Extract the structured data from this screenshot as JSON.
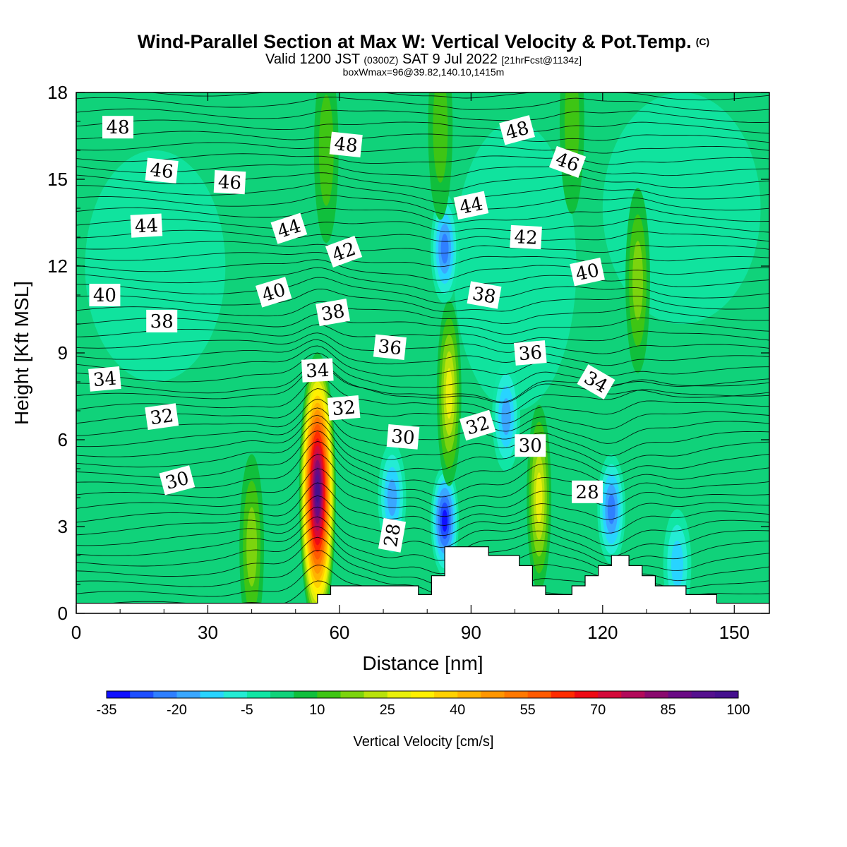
{
  "title": {
    "main": "Wind-Parallel Section at Max W: Vertical Velocity & Pot.Temp.",
    "main_suffix": "(C)",
    "valid_prefix": "Valid 1200 JST",
    "valid_utc": "(0300Z)",
    "valid_date": "SAT 9 Jul 2022",
    "forecast": "[21hrFcst@1134z]",
    "box_info": "boxWmax=96@39.82,140.10,1415m"
  },
  "chart_data": {
    "type": "heatmap",
    "xlabel": "Distance [nm]",
    "ylabel": "Height [Kft MSL]",
    "xlim": [
      0,
      158
    ],
    "ylim": [
      0,
      18
    ],
    "x_ticks": [
      0,
      30,
      60,
      90,
      120,
      150
    ],
    "y_ticks": [
      0,
      3,
      6,
      9,
      12,
      15,
      18
    ],
    "colorbar": {
      "title": "Vertical Velocity [cm/s]",
      "levels": [
        -35,
        -30,
        -25,
        -20,
        -15,
        -10,
        -5,
        0,
        5,
        10,
        15,
        20,
        25,
        30,
        35,
        40,
        45,
        50,
        55,
        60,
        65,
        70,
        75,
        80,
        85,
        90,
        95,
        100
      ],
      "tick_labels": [
        "-35",
        "-20",
        "-5",
        "10",
        "25",
        "40",
        "55",
        "70",
        "85",
        "100"
      ],
      "colors": [
        "#1010ff",
        "#1f4fff",
        "#2f7fff",
        "#3aa7ff",
        "#28d4ff",
        "#24ecd4",
        "#10e6a4",
        "#10d27a",
        "#10bf3c",
        "#3ec514",
        "#7cd40e",
        "#b8e20b",
        "#e9f00a",
        "#fff000",
        "#ffd100",
        "#ffb300",
        "#ff9600",
        "#ff7800",
        "#ff5a00",
        "#ff2c00",
        "#ee0a14",
        "#d40a3a",
        "#b20a5a",
        "#8a0a6e",
        "#6a0a84",
        "#55108e",
        "#45108e"
      ]
    },
    "updraft_cores": [
      {
        "x": 55,
        "z": 4.2,
        "w": 96
      },
      {
        "x": 85,
        "z": 7.6,
        "w": 25
      },
      {
        "x": 105.5,
        "z": 4.0,
        "w": 25
      },
      {
        "x": 40,
        "z": 2.3,
        "w": 15
      },
      {
        "x": 128,
        "z": 11.5,
        "w": 15
      },
      {
        "x": 113,
        "z": 17.0,
        "w": 12
      },
      {
        "x": 83,
        "z": 16.8,
        "w": 12
      },
      {
        "x": 57,
        "z": 16.0,
        "w": 10
      }
    ],
    "downdraft_cores": [
      {
        "x": 84,
        "z": 3.2,
        "w": -30
      },
      {
        "x": 84,
        "z": 12.6,
        "w": -20
      },
      {
        "x": 72,
        "z": 4.0,
        "w": -15
      },
      {
        "x": 98,
        "z": 6.8,
        "w": -15
      },
      {
        "x": 122,
        "z": 3.6,
        "w": -20
      },
      {
        "x": 137,
        "z": 1.7,
        "w": -10
      }
    ],
    "terrain": [
      [
        0,
        0.35
      ],
      [
        55,
        0.35
      ],
      [
        55,
        0.65
      ],
      [
        58,
        0.65
      ],
      [
        58,
        0.95
      ],
      [
        78,
        0.95
      ],
      [
        78,
        0.65
      ],
      [
        81,
        0.65
      ],
      [
        81,
        1.3
      ],
      [
        84,
        1.3
      ],
      [
        84,
        2.3
      ],
      [
        94,
        2.3
      ],
      [
        94,
        2.0
      ],
      [
        101,
        2.0
      ],
      [
        101,
        1.65
      ],
      [
        104,
        1.65
      ],
      [
        104,
        0.95
      ],
      [
        107,
        0.95
      ],
      [
        107,
        0.65
      ],
      [
        113,
        0.65
      ],
      [
        113,
        0.95
      ],
      [
        116,
        0.95
      ],
      [
        116,
        1.3
      ],
      [
        119,
        1.3
      ],
      [
        119,
        1.65
      ],
      [
        122,
        1.65
      ],
      [
        122,
        2.0
      ],
      [
        126,
        2.0
      ],
      [
        126,
        1.65
      ],
      [
        129,
        1.65
      ],
      [
        129,
        1.3
      ],
      [
        132,
        1.3
      ],
      [
        132,
        0.95
      ],
      [
        139,
        0.95
      ],
      [
        139,
        0.65
      ],
      [
        146,
        0.65
      ],
      [
        146,
        0.35
      ],
      [
        158,
        0.35
      ]
    ],
    "theta_labels": [
      {
        "text": "48",
        "x": 9.5,
        "z": 16.8,
        "rot": 0
      },
      {
        "text": "48",
        "x": 61.5,
        "z": 16.2,
        "rot": 6
      },
      {
        "text": "48",
        "x": 100.5,
        "z": 16.7,
        "rot": -15
      },
      {
        "text": "46",
        "x": 19.5,
        "z": 15.3,
        "rot": 6
      },
      {
        "text": "46",
        "x": 35,
        "z": 14.9,
        "rot": 3
      },
      {
        "text": "46",
        "x": 112,
        "z": 15.6,
        "rot": 20
      },
      {
        "text": "44",
        "x": 16,
        "z": 13.4,
        "rot": -3
      },
      {
        "text": "44",
        "x": 48.5,
        "z": 13.3,
        "rot": -18
      },
      {
        "text": "44",
        "x": 90,
        "z": 14.1,
        "rot": -12
      },
      {
        "text": "42",
        "x": 61,
        "z": 12.5,
        "rot": -20
      },
      {
        "text": "42",
        "x": 102.5,
        "z": 13.0,
        "rot": 3
      },
      {
        "text": "40",
        "x": 6.5,
        "z": 11.0,
        "rot": 0
      },
      {
        "text": "40",
        "x": 45,
        "z": 11.1,
        "rot": -17
      },
      {
        "text": "40",
        "x": 116.5,
        "z": 11.8,
        "rot": -12
      },
      {
        "text": "38",
        "x": 19.5,
        "z": 10.1,
        "rot": 0
      },
      {
        "text": "38",
        "x": 58.5,
        "z": 10.4,
        "rot": -10
      },
      {
        "text": "38",
        "x": 93,
        "z": 11.0,
        "rot": 10
      },
      {
        "text": "36",
        "x": 71.5,
        "z": 9.2,
        "rot": 6
      },
      {
        "text": "36",
        "x": 103.5,
        "z": 9.0,
        "rot": -5
      },
      {
        "text": "34",
        "x": 55,
        "z": 8.4,
        "rot": -3
      },
      {
        "text": "34",
        "x": 6.5,
        "z": 8.1,
        "rot": -5
      },
      {
        "text": "34",
        "x": 118.5,
        "z": 8.0,
        "rot": 30
      },
      {
        "text": "32",
        "x": 19.5,
        "z": 6.8,
        "rot": -8
      },
      {
        "text": "32",
        "x": 61,
        "z": 7.1,
        "rot": -5
      },
      {
        "text": "32",
        "x": 91.5,
        "z": 6.5,
        "rot": -17
      },
      {
        "text": "30",
        "x": 23,
        "z": 4.6,
        "rot": -15
      },
      {
        "text": "30",
        "x": 74.5,
        "z": 6.1,
        "rot": 5
      },
      {
        "text": "30",
        "x": 103.5,
        "z": 5.8,
        "rot": 0
      },
      {
        "text": "28",
        "x": 72,
        "z": 2.7,
        "rot": -80
      },
      {
        "text": "28",
        "x": 116.5,
        "z": 4.2,
        "rot": 0
      }
    ]
  }
}
